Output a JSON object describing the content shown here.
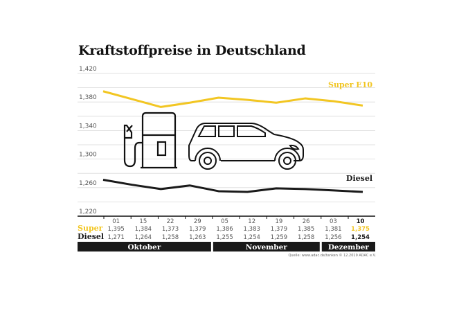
{
  "chart_data": {
    "type": "line",
    "title": "Kraftstoffpreise in Deutschland",
    "ylim": [
      1.22,
      1.42
    ],
    "yticks": [
      "1,420",
      "1,380",
      "1,340",
      "1,300",
      "1,260",
      "1,220"
    ],
    "grid": true,
    "categories": [
      "01",
      "15",
      "22",
      "29",
      "05",
      "12",
      "19",
      "26",
      "03",
      "10"
    ],
    "months": [
      {
        "label": "Oktober",
        "span": 4
      },
      {
        "label": "November",
        "span": 4
      },
      {
        "label": "Dezember",
        "span": 2
      }
    ],
    "series": [
      {
        "name": "Super E10",
        "table_label": "Super",
        "color": "#f2c623",
        "values": [
          1.395,
          1.384,
          1.373,
          1.379,
          1.386,
          1.383,
          1.379,
          1.385,
          1.381,
          1.375
        ],
        "labels": [
          "1,395",
          "1,384",
          "1,373",
          "1,379",
          "1,386",
          "1,383",
          "1,379",
          "1,385",
          "1,381",
          "1,375"
        ]
      },
      {
        "name": "Diesel",
        "table_label": "Diesel",
        "color": "#1a1a1a",
        "values": [
          1.271,
          1.264,
          1.258,
          1.263,
          1.255,
          1.254,
          1.259,
          1.258,
          1.256,
          1.254
        ],
        "labels": [
          "1,271",
          "1,264",
          "1,258",
          "1,263",
          "1,255",
          "1,254",
          "1,259",
          "1,258",
          "1,256",
          "1,254"
        ]
      }
    ],
    "source": "Quelle: www.adac.de/tanken   © 12.2019  ADAC e.V."
  }
}
